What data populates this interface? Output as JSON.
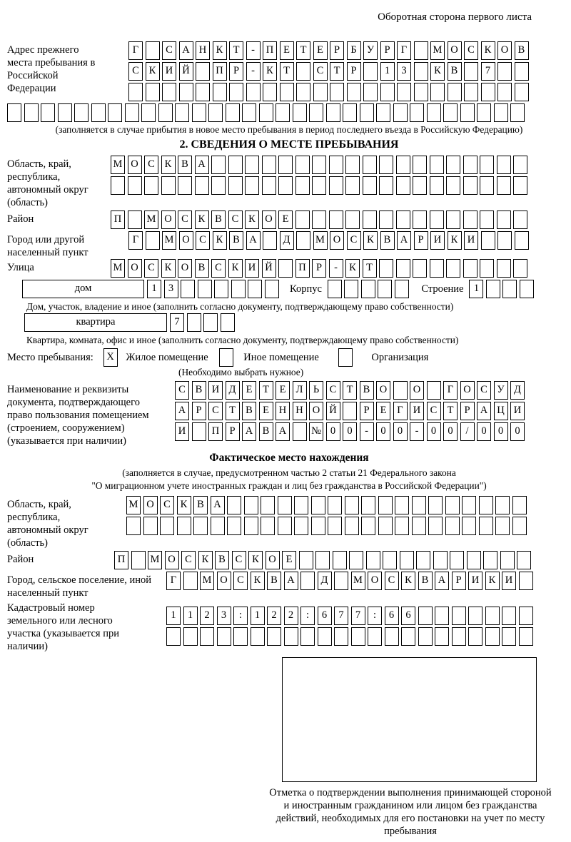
{
  "page": {
    "corner_note": "Оборотная сторона первого листа"
  },
  "prev_address": {
    "label": "Адрес прежнего места пребывания в Российской Федерации",
    "row1": "Г САНКТ-ПЕТЕРБУРГ МОСКОВ",
    "row2": "СКИЙ ПР-КТ СТР 13 КВ 7  ",
    "row3": "                        ",
    "row4": "                               ",
    "note": "(заполняется в случае прибытия в новое место пребывания в период последнего въезда в Российскую Федерацию)"
  },
  "section2": {
    "title": "2. СВЕДЕНИЯ О МЕСТЕ ПРЕБЫВАНИЯ",
    "oblast": {
      "label": "Область, край, республика, автономный округ (область)",
      "row1": "МОСКВА                   ",
      "row2": "                         "
    },
    "raion": {
      "label": "Район",
      "row": "П МОСКВСКОЕ              "
    },
    "gorod": {
      "label": "Город или другой населенный пункт",
      "row": "Г МОСКВА Д МОСКВАРИКИ   "
    },
    "ulitsa": {
      "label": "Улица",
      "row": "МОСКОВСКИЙ ПР-КТ         "
    },
    "dom": {
      "label": "дом",
      "boxes": "13      ",
      "korpus_label": "Корпус",
      "korpus_boxes": "     ",
      "stroenie_label": "Строение",
      "stroenie_boxes": "1   ",
      "note": "Дом, участок, владение и иное (заполнить согласно документу, подтверждающему право собственности)"
    },
    "kvartira": {
      "label": "квартира",
      "boxes": "7   ",
      "note": "Квартира, комната, офис и иное (заполнить согласно документу, подтверждающему право собственности)"
    },
    "mesto": {
      "label": "Место пребывания:",
      "zhiloe_check": "X",
      "zhiloe_label": "Жилое помещение",
      "inoe_check": "",
      "inoe_label": "Иное помещение",
      "org_check": "",
      "org_label": "Организация",
      "note": "(Необходимо выбрать нужное)"
    },
    "doc": {
      "label": "Наименование и реквизиты документа, подтверждающего право пользования помещением (строением, сооружением) (указывается при наличии)",
      "row1": "СВИДЕТЕЛЬСТВО О ГОСУД",
      "row2": "АРСТВЕННОЙ РЕГИСТРАЦИ",
      "row3": "И ПРАВА №00-00-00/000"
    }
  },
  "fact": {
    "title": "Фактическое место нахождения",
    "note1": "(заполняется в случае, предусмотренном частью 2 статьи 21 Федерального закона",
    "note2": "\"О миграционном учете иностранных граждан и лиц без гражданства в Российской Федерации\")",
    "oblast": {
      "label": "Область, край, республика, автономный округ (область)",
      "row1": "МОСКВА                  ",
      "row2": "                        "
    },
    "raion": {
      "label": "Район",
      "row": "П МОСКВСКОЕ              "
    },
    "gorod": {
      "label": "Город, сельское поселение, иной населенный пункт",
      "row": "Г МОСКВА Д МОСКВАРИКИ "
    },
    "kadastr": {
      "label": "Кадастровый номер земельного или лесного участка (указывается при наличии)",
      "row1": "1123:122:677:66       ",
      "row2": "                      "
    },
    "stamp_caption": "Отметка о подтверждении выполнения принимающей стороной и иностранным гражданином или лицом без гражданства действий, необходимых для его постановки на учет по месту пребывания"
  }
}
